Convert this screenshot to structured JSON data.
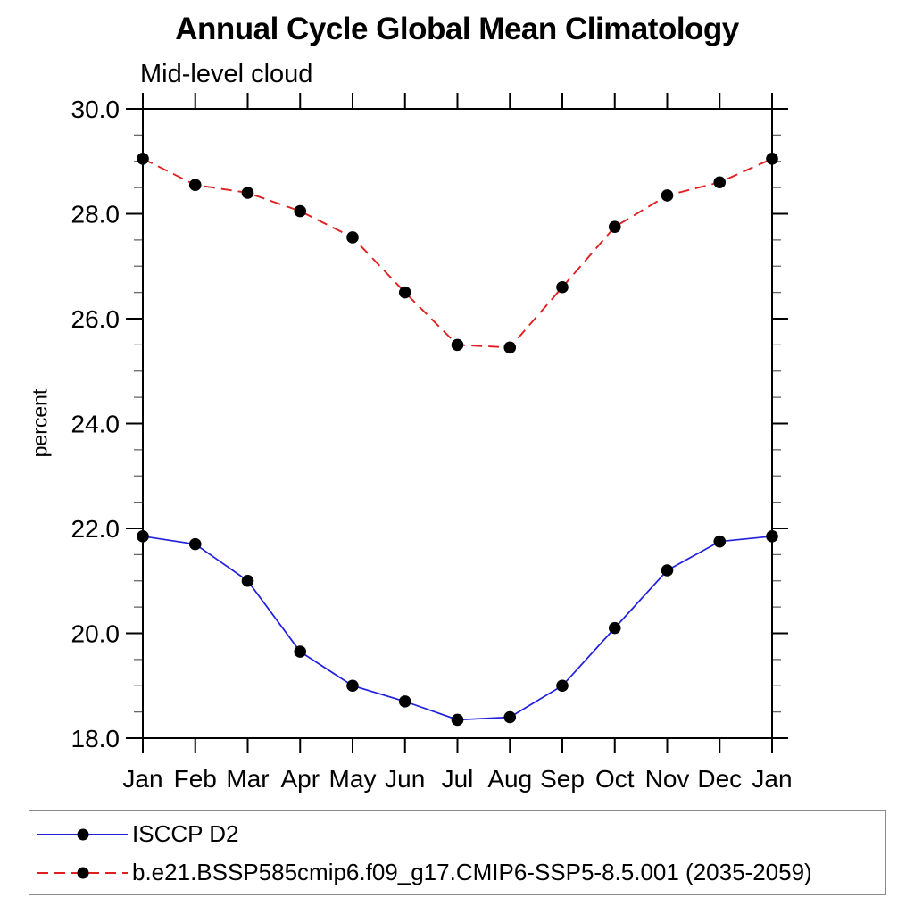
{
  "chart_data": {
    "type": "line",
    "title": "Annual Cycle Global Mean Climatology",
    "subtitle": "Mid-level cloud",
    "xlabel": "",
    "ylabel": "percent",
    "categories": [
      "Jan",
      "Feb",
      "Mar",
      "Apr",
      "May",
      "Jun",
      "Jul",
      "Aug",
      "Sep",
      "Oct",
      "Nov",
      "Dec",
      "Jan"
    ],
    "series": [
      {
        "name": "ISCCP D2",
        "color": "#2020dd",
        "line_style": "solid",
        "marker": "filled-circle",
        "marker_color": "#000000",
        "values": [
          21.85,
          21.7,
          21.0,
          19.65,
          19.0,
          18.7,
          18.35,
          18.4,
          19.0,
          20.1,
          21.2,
          21.75,
          21.85
        ]
      },
      {
        "name": "b.e21.BSSP585cmip6.f09_g17.CMIP6-SSP5-8.5.001 (2035-2059)",
        "color": "#e02020",
        "line_style": "dashed",
        "marker": "filled-circle",
        "marker_color": "#000000",
        "values": [
          29.05,
          28.55,
          28.4,
          28.05,
          27.55,
          26.5,
          25.5,
          25.45,
          26.6,
          27.75,
          28.35,
          28.6,
          29.05
        ]
      }
    ],
    "ylim": [
      18.0,
      30.0
    ],
    "ytick_major_step": 2.0,
    "ytick_minor_step": 0.5,
    "ytick_labels": [
      "18.0",
      "20.0",
      "22.0",
      "24.0",
      "26.0",
      "28.0",
      "30.0"
    ],
    "grid": false,
    "axis_color": "#000000",
    "legend_position": "bottom-left-box"
  }
}
